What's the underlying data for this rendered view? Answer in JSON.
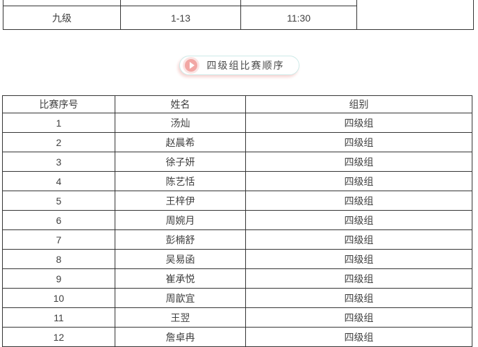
{
  "schedule_table": {
    "row": {
      "level": "九级",
      "range": "1-13",
      "time": "11:30",
      "note": ""
    }
  },
  "section_badge": {
    "icon": "play-icon",
    "label": "四级组比赛顺序"
  },
  "roster_table": {
    "headers": [
      "比赛序号",
      "姓名",
      "组别"
    ],
    "rows": [
      {
        "no": "1",
        "name": "汤灿",
        "group": "四级组"
      },
      {
        "no": "2",
        "name": "赵晨希",
        "group": "四级组"
      },
      {
        "no": "3",
        "name": "徐子妍",
        "group": "四级组"
      },
      {
        "no": "4",
        "name": "陈艺恬",
        "group": "四级组"
      },
      {
        "no": "5",
        "name": "王梓伊",
        "group": "四级组"
      },
      {
        "no": "6",
        "name": "周婉月",
        "group": "四级组"
      },
      {
        "no": "7",
        "name": "彭楠舒",
        "group": "四级组"
      },
      {
        "no": "8",
        "name": "吴易函",
        "group": "四级组"
      },
      {
        "no": "9",
        "name": "崔承悦",
        "group": "四级组"
      },
      {
        "no": "10",
        "name": "周歆宜",
        "group": "四级组"
      },
      {
        "no": "11",
        "name": "王翌",
        "group": "四级组"
      },
      {
        "no": "12",
        "name": "詹卓冉",
        "group": "四级组"
      }
    ]
  },
  "colors": {
    "table_border": "#333333",
    "text": "#404040",
    "badge_border": "#cdeae8",
    "badge_shadow": "#f6d5d3",
    "badge_icon": "#f2a7a4"
  }
}
